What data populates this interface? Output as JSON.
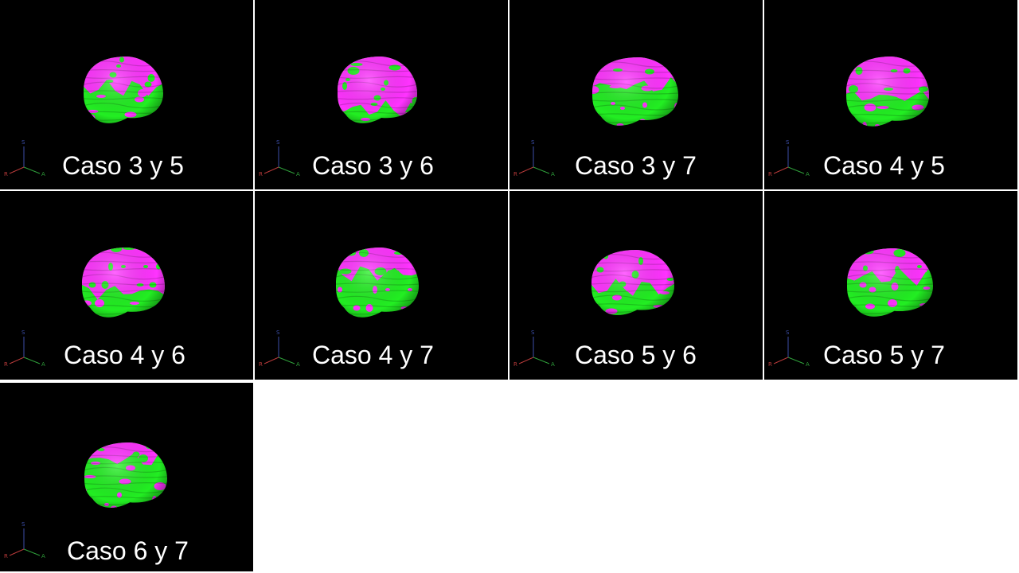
{
  "slide": {
    "background": "#ffffff",
    "panel_background": "#000000"
  },
  "colors": {
    "region_a": "#ff33ff",
    "region_b": "#22ee22"
  },
  "axis_labels": {
    "superior": "S",
    "right": "R",
    "anterior": "A"
  },
  "axis_colors": {
    "superior": "#3b4ea8",
    "right": "#b83a3a",
    "anterior": "#2e9e3a"
  },
  "panels": [
    {
      "caption": "Caso 3 y 5",
      "magenta_fraction": 0.45
    },
    {
      "caption": "Caso 3 y 6",
      "magenta_fraction": 0.75
    },
    {
      "caption": "Caso 3 y 7",
      "magenta_fraction": 0.4
    },
    {
      "caption": "Caso 4 y 5",
      "magenta_fraction": 0.55
    },
    {
      "caption": "Caso 4 y 6",
      "magenta_fraction": 0.6
    },
    {
      "caption": "Caso 4 y 7",
      "magenta_fraction": 0.35
    },
    {
      "caption": "Caso 5 y 6",
      "magenta_fraction": 0.55
    },
    {
      "caption": "Caso 5 y 7",
      "magenta_fraction": 0.4
    },
    {
      "caption": "Caso 6 y 7",
      "magenta_fraction": 0.25
    }
  ]
}
